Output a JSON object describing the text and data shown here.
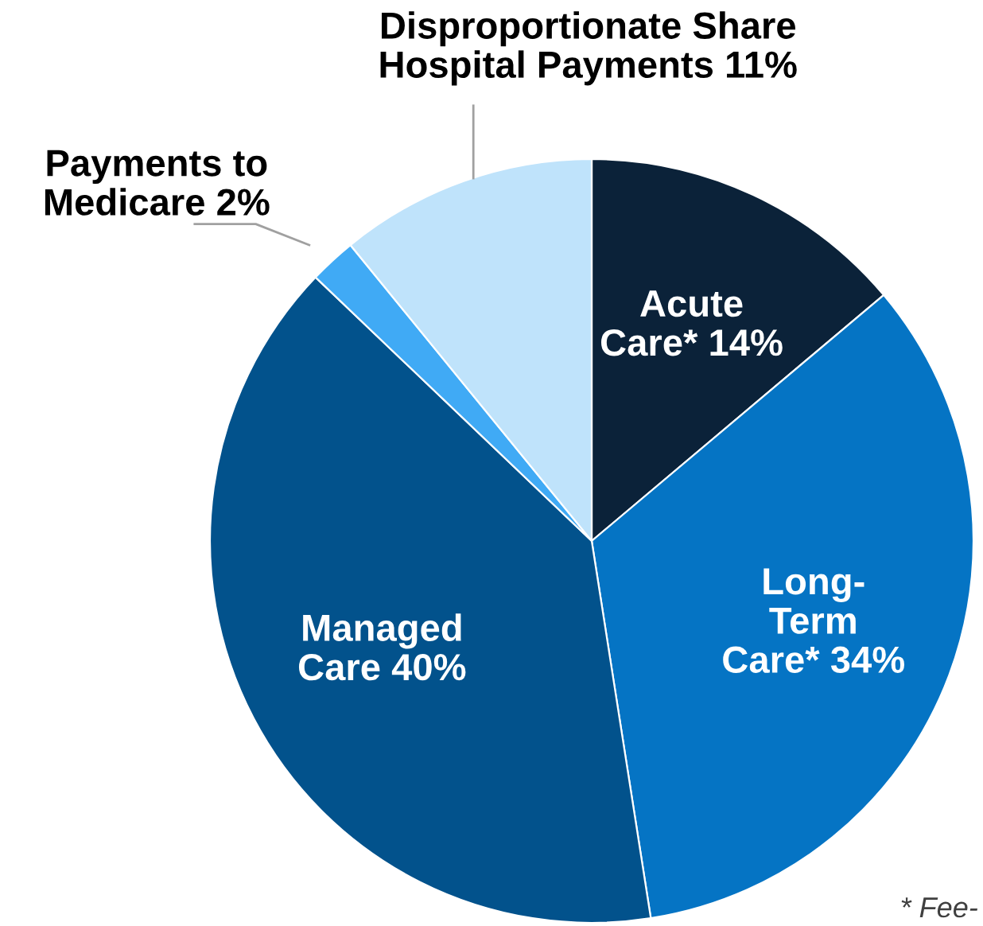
{
  "chart_data": {
    "type": "pie",
    "categories": [
      "Acute\nCare*",
      "Long-\nTerm\nCare*",
      "Managed\nCare",
      "Payments to\nMedicare",
      "Disproportionate Share\nHospital Payments"
    ],
    "values": [
      14,
      34,
      40,
      2,
      11
    ],
    "value_labels": [
      "14%",
      "34%",
      "40%",
      "2%",
      "11%"
    ],
    "colors": [
      "#0b2239",
      "#0574c4",
      "#02528c",
      "#40aaf5",
      "#bfe3fb"
    ],
    "annotations": [
      "* Fee-"
    ]
  }
}
